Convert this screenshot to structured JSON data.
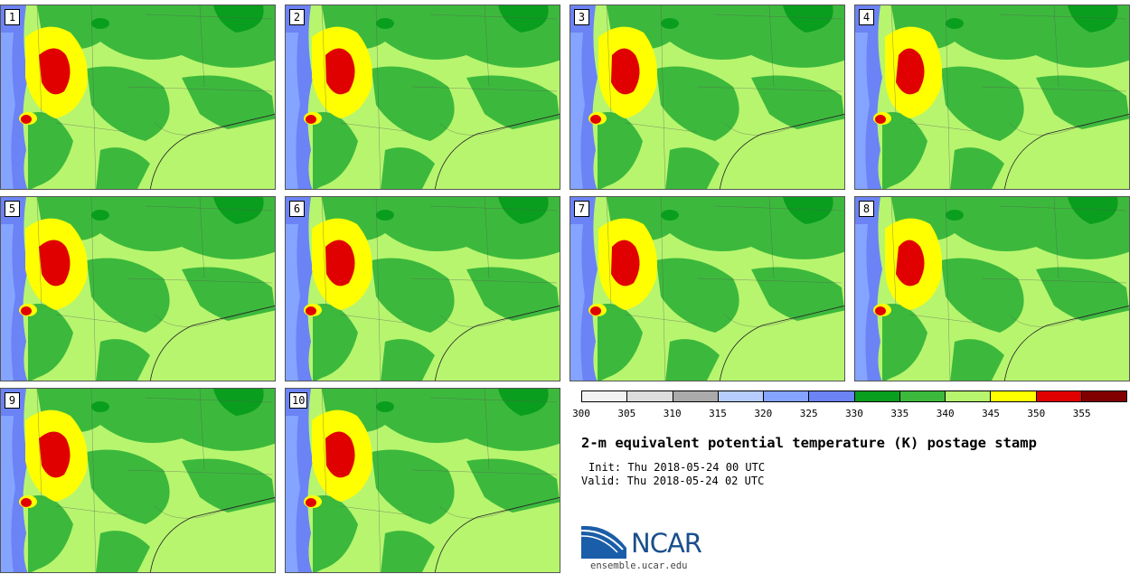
{
  "stamps": [
    {
      "label": "1"
    },
    {
      "label": "2"
    },
    {
      "label": "3"
    },
    {
      "label": "4"
    },
    {
      "label": "5"
    },
    {
      "label": "6"
    },
    {
      "label": "7"
    },
    {
      "label": "8"
    },
    {
      "label": "9"
    },
    {
      "label": "10"
    }
  ],
  "colorbar": {
    "colors": [
      "#f2f2f2",
      "#dddddd",
      "#aaaaaa",
      "#b6ccff",
      "#84a4ff",
      "#6b83f5",
      "#0a9e1e",
      "#3cb93c",
      "#b7f56f",
      "#ffff00",
      "#e00000",
      "#800000"
    ],
    "ticks": [
      "300",
      "305",
      "310",
      "315",
      "320",
      "325",
      "330",
      "335",
      "340",
      "345",
      "350",
      "355"
    ]
  },
  "title": "2-m equivalent potential temperature (K) postage stamp",
  "init": "Init: Thu 2018-05-24 00 UTC",
  "valid": "Valid: Thu 2018-05-24 02 UTC",
  "logo": {
    "text": "NCAR"
  },
  "site": "ensemble.ucar.edu"
}
